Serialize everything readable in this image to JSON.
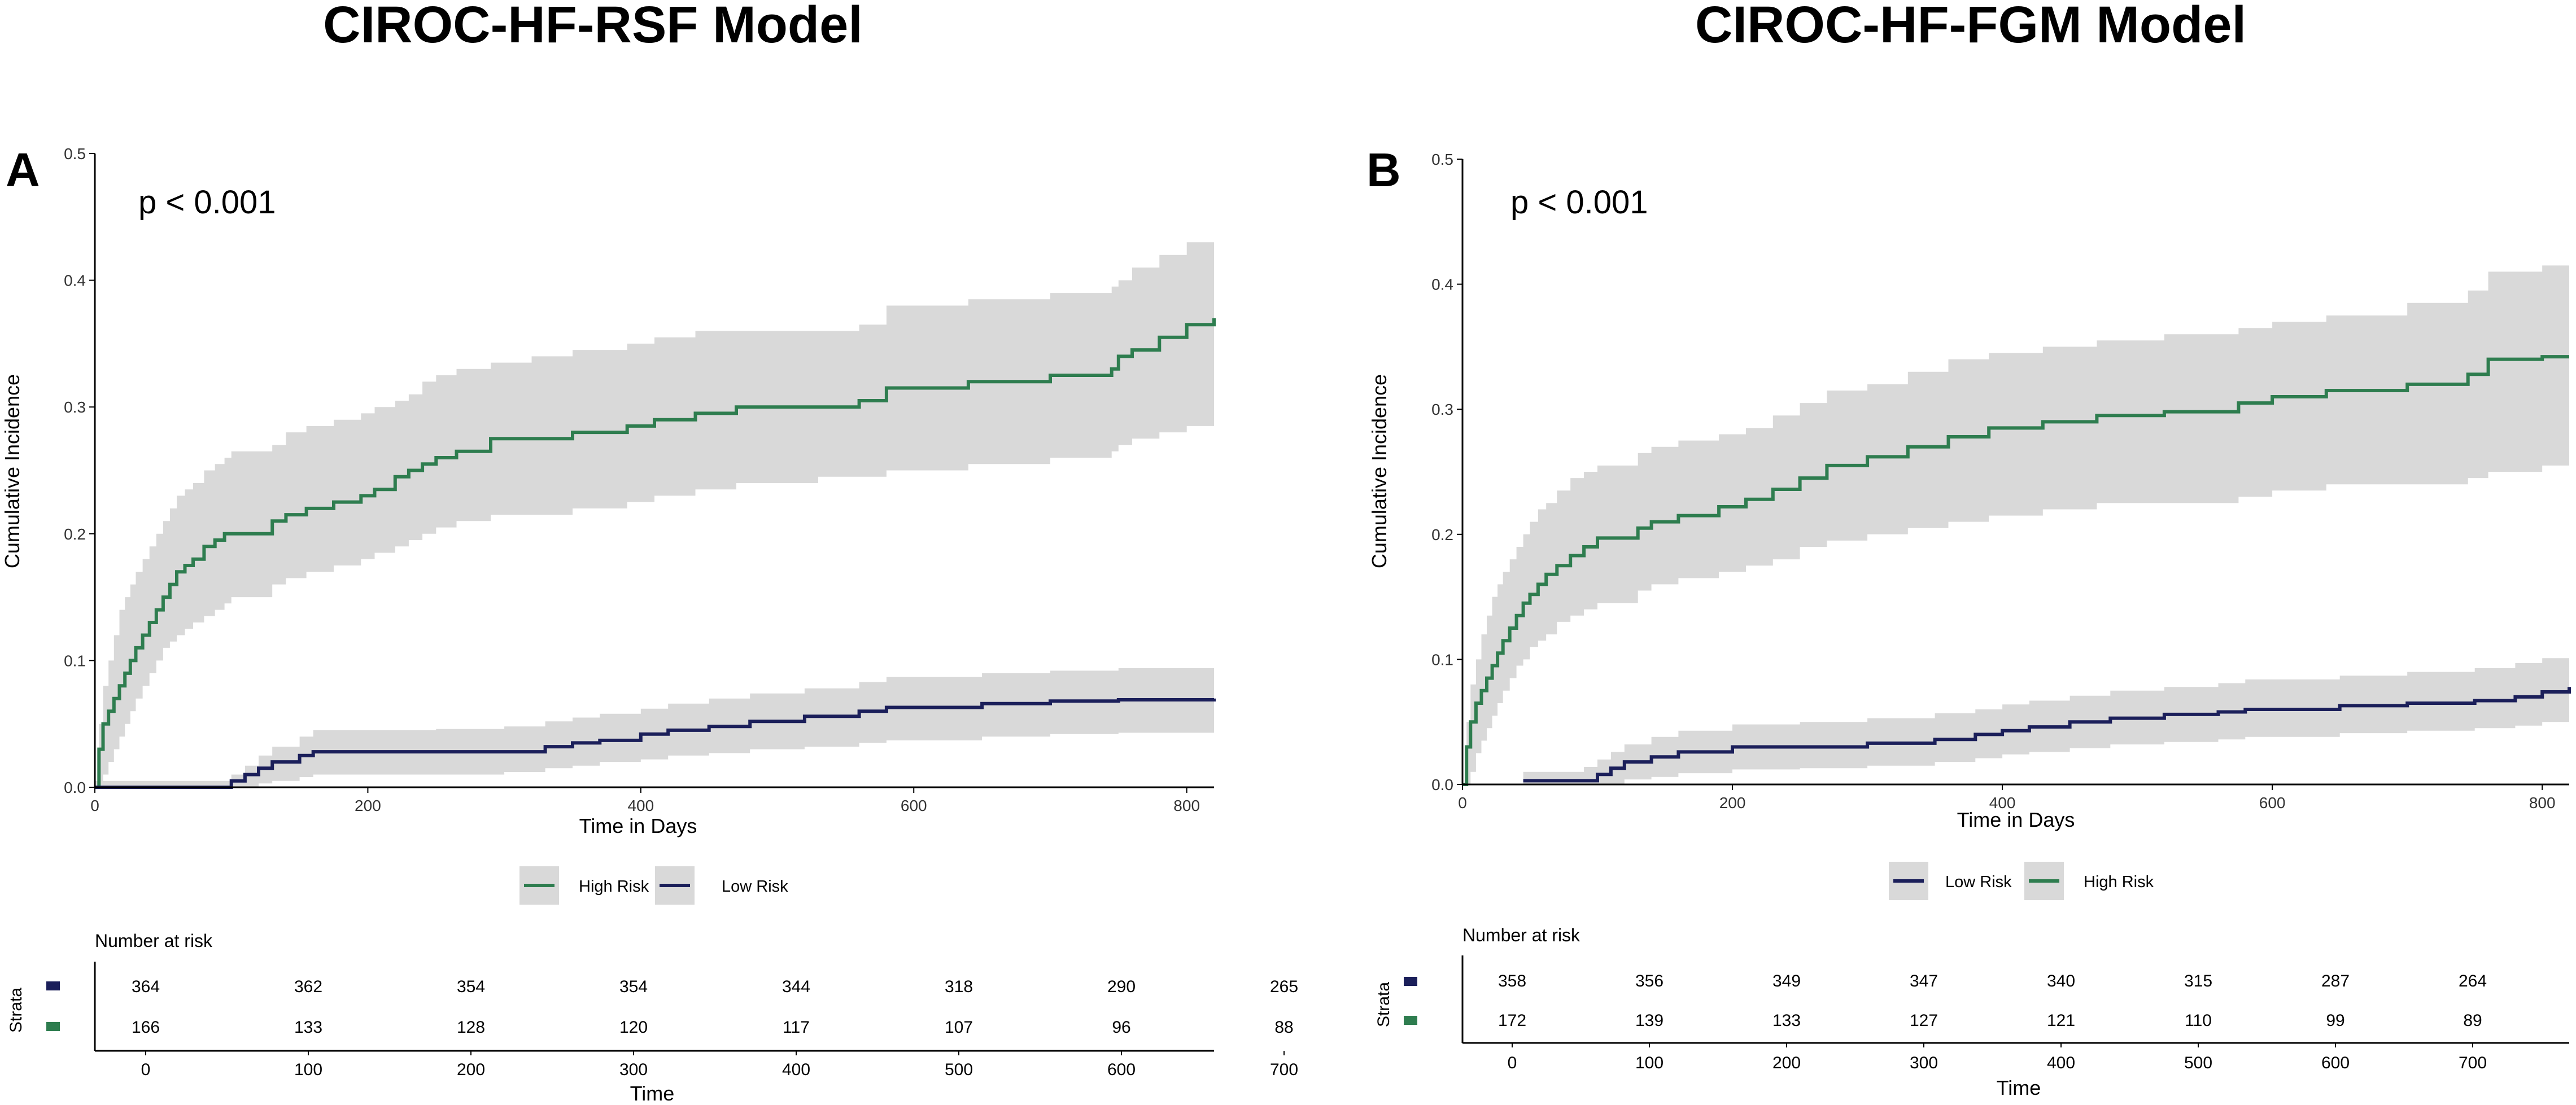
{
  "colors": {
    "high": "#2e7d4f",
    "low": "#1b1f5a",
    "band": "#d9d9d9",
    "axis": "#000000"
  },
  "panels": [
    {
      "title": "CIROC-HF-RSF Model",
      "label": "A",
      "pvalue": "p < 0.001",
      "legend": [
        "High Risk",
        "Low Risk"
      ],
      "risk_table": {
        "title": "Number at risk",
        "strata_label": "Strata",
        "xlabel": "Time",
        "ticks": [
          "0",
          "100",
          "200",
          "300",
          "400",
          "500",
          "600",
          "700"
        ],
        "rows": [
          {
            "series": "Low Risk",
            "values": [
              "364",
              "362",
              "354",
              "354",
              "344",
              "318",
              "290",
              "265"
            ]
          },
          {
            "series": "High Risk",
            "values": [
              "166",
              "133",
              "128",
              "120",
              "117",
              "107",
              "96",
              "88"
            ]
          }
        ]
      }
    },
    {
      "title": "CIROC-HF-FGM Model",
      "label": "B",
      "pvalue": "p < 0.001",
      "legend": [
        "Low Risk",
        "High Risk"
      ],
      "risk_table": {
        "title": "Number at risk",
        "strata_label": "Strata",
        "xlabel": "Time",
        "ticks": [
          "0",
          "100",
          "200",
          "300",
          "400",
          "500",
          "600",
          "700"
        ],
        "rows": [
          {
            "series": "Low Risk",
            "values": [
              "358",
              "356",
              "349",
              "347",
              "340",
              "315",
              "287",
              "264"
            ]
          },
          {
            "series": "High Risk",
            "values": [
              "172",
              "139",
              "133",
              "127",
              "121",
              "110",
              "99",
              "89"
            ]
          }
        ]
      }
    }
  ],
  "chart_data": [
    {
      "type": "line",
      "title": "CIROC-HF-RSF Model",
      "xlabel": "Time in Days",
      "ylabel": "Cumulative Incidence",
      "xlim": [
        0,
        820
      ],
      "ylim": [
        0,
        0.5
      ],
      "xticks": [
        0,
        200,
        400,
        600,
        800
      ],
      "yticks": [
        0.0,
        0.1,
        0.2,
        0.3,
        0.4,
        0.5
      ],
      "grid": false,
      "legend_position": "bottom",
      "series": [
        {
          "name": "High Risk",
          "color": "#2e7d4f",
          "x": [
            0,
            3,
            6,
            10,
            14,
            18,
            22,
            26,
            30,
            35,
            40,
            45,
            50,
            55,
            60,
            66,
            72,
            80,
            88,
            95,
            100,
            130,
            140,
            155,
            175,
            195,
            205,
            220,
            230,
            240,
            250,
            265,
            290,
            320,
            350,
            370,
            390,
            410,
            440,
            470,
            500,
            530,
            560,
            580,
            600,
            640,
            660,
            700,
            745,
            750,
            760,
            780,
            800,
            820
          ],
          "y": [
            0,
            0.03,
            0.05,
            0.06,
            0.07,
            0.08,
            0.09,
            0.1,
            0.11,
            0.12,
            0.13,
            0.14,
            0.15,
            0.16,
            0.17,
            0.175,
            0.18,
            0.19,
            0.195,
            0.2,
            0.2,
            0.21,
            0.215,
            0.22,
            0.225,
            0.23,
            0.235,
            0.245,
            0.25,
            0.255,
            0.26,
            0.265,
            0.275,
            0.275,
            0.28,
            0.28,
            0.285,
            0.29,
            0.295,
            0.3,
            0.3,
            0.3,
            0.305,
            0.315,
            0.315,
            0.32,
            0.32,
            0.325,
            0.33,
            0.34,
            0.345,
            0.355,
            0.365,
            0.37
          ],
          "ci_lower": [
            0,
            0.0,
            0.01,
            0.02,
            0.03,
            0.04,
            0.05,
            0.06,
            0.07,
            0.08,
            0.09,
            0.1,
            0.11,
            0.115,
            0.12,
            0.125,
            0.13,
            0.135,
            0.14,
            0.145,
            0.15,
            0.16,
            0.165,
            0.17,
            0.175,
            0.18,
            0.185,
            0.19,
            0.195,
            0.2,
            0.205,
            0.21,
            0.215,
            0.215,
            0.22,
            0.22,
            0.225,
            0.23,
            0.235,
            0.24,
            0.24,
            0.245,
            0.245,
            0.25,
            0.25,
            0.255,
            0.255,
            0.26,
            0.265,
            0.27,
            0.275,
            0.28,
            0.285,
            0.29
          ],
          "ci_upper": [
            0,
            0.05,
            0.08,
            0.1,
            0.12,
            0.14,
            0.15,
            0.16,
            0.17,
            0.18,
            0.19,
            0.2,
            0.21,
            0.22,
            0.23,
            0.235,
            0.24,
            0.25,
            0.255,
            0.26,
            0.265,
            0.27,
            0.28,
            0.285,
            0.29,
            0.295,
            0.3,
            0.305,
            0.31,
            0.32,
            0.325,
            0.33,
            0.335,
            0.34,
            0.345,
            0.345,
            0.35,
            0.355,
            0.36,
            0.36,
            0.36,
            0.36,
            0.365,
            0.38,
            0.38,
            0.385,
            0.385,
            0.39,
            0.395,
            0.4,
            0.41,
            0.42,
            0.43,
            0.45
          ]
        },
        {
          "name": "Low Risk",
          "color": "#1b1f5a",
          "x": [
            0,
            90,
            100,
            110,
            120,
            130,
            150,
            160,
            200,
            250,
            300,
            330,
            350,
            370,
            400,
            420,
            450,
            480,
            520,
            560,
            580,
            650,
            700,
            750,
            820
          ],
          "y": [
            0,
            0.0,
            0.005,
            0.01,
            0.015,
            0.02,
            0.025,
            0.028,
            0.028,
            0.028,
            0.028,
            0.032,
            0.035,
            0.037,
            0.042,
            0.045,
            0.048,
            0.052,
            0.056,
            0.06,
            0.063,
            0.066,
            0.068,
            0.069,
            0.07
          ],
          "ci_lower": [
            0,
            0.0,
            0.0,
            0.0,
            0.003,
            0.005,
            0.008,
            0.01,
            0.01,
            0.01,
            0.012,
            0.015,
            0.017,
            0.02,
            0.022,
            0.025,
            0.027,
            0.03,
            0.032,
            0.035,
            0.037,
            0.04,
            0.042,
            0.043,
            0.045
          ],
          "ci_upper": [
            0.005,
            0.005,
            0.01,
            0.017,
            0.025,
            0.032,
            0.04,
            0.045,
            0.045,
            0.046,
            0.048,
            0.052,
            0.055,
            0.058,
            0.062,
            0.066,
            0.07,
            0.074,
            0.078,
            0.083,
            0.087,
            0.09,
            0.092,
            0.094,
            0.096
          ]
        }
      ]
    },
    {
      "type": "line",
      "title": "CIROC-HF-FGM Model",
      "xlabel": "Time in Days",
      "ylabel": "Cumulative Incidence",
      "xlim": [
        0,
        820
      ],
      "ylim": [
        0,
        0.5
      ],
      "xticks": [
        0,
        200,
        400,
        600,
        800
      ],
      "yticks": [
        0.0,
        0.1,
        0.2,
        0.3,
        0.4,
        0.5
      ],
      "grid": false,
      "legend_position": "bottom",
      "series": [
        {
          "name": "Low Risk",
          "color": "#1b1f5a",
          "x": [
            45,
            90,
            100,
            110,
            120,
            140,
            160,
            200,
            250,
            300,
            350,
            380,
            400,
            420,
            450,
            480,
            520,
            560,
            580,
            650,
            700,
            750,
            780,
            800,
            820
          ],
          "y": [
            0.003,
            0.003,
            0.008,
            0.013,
            0.018,
            0.022,
            0.026,
            0.03,
            0.03,
            0.033,
            0.036,
            0.04,
            0.043,
            0.046,
            0.05,
            0.053,
            0.056,
            0.058,
            0.06,
            0.063,
            0.065,
            0.067,
            0.07,
            0.074,
            0.078
          ],
          "ci_lower": [
            0,
            0,
            0.0,
            0.0,
            0.004,
            0.006,
            0.009,
            0.012,
            0.013,
            0.015,
            0.018,
            0.021,
            0.024,
            0.026,
            0.029,
            0.032,
            0.034,
            0.036,
            0.038,
            0.041,
            0.043,
            0.045,
            0.047,
            0.05,
            0.053
          ],
          "ci_upper": [
            0.01,
            0.014,
            0.02,
            0.026,
            0.032,
            0.038,
            0.043,
            0.048,
            0.05,
            0.053,
            0.057,
            0.06,
            0.064,
            0.067,
            0.071,
            0.075,
            0.078,
            0.081,
            0.084,
            0.087,
            0.09,
            0.093,
            0.097,
            0.101,
            0.105
          ]
        },
        {
          "name": "High Risk",
          "color": "#2e7d4f",
          "x": [
            0,
            3,
            6,
            10,
            14,
            18,
            22,
            26,
            30,
            35,
            40,
            45,
            50,
            56,
            62,
            70,
            80,
            90,
            100,
            130,
            140,
            160,
            190,
            210,
            230,
            250,
            270,
            300,
            330,
            360,
            390,
            430,
            470,
            520,
            575,
            600,
            640,
            700,
            745,
            760,
            800,
            820
          ],
          "y": [
            0,
            0.03,
            0.05,
            0.065,
            0.075,
            0.085,
            0.095,
            0.105,
            0.115,
            0.125,
            0.135,
            0.145,
            0.152,
            0.16,
            0.168,
            0.175,
            0.183,
            0.19,
            0.197,
            0.205,
            0.21,
            0.215,
            0.222,
            0.228,
            0.236,
            0.245,
            0.255,
            0.262,
            0.27,
            0.278,
            0.285,
            0.29,
            0.295,
            0.298,
            0.305,
            0.31,
            0.315,
            0.32,
            0.328,
            0.34,
            0.342,
            0.342
          ],
          "ci_lower": [
            0,
            0.0,
            0.01,
            0.025,
            0.035,
            0.045,
            0.055,
            0.065,
            0.075,
            0.085,
            0.095,
            0.1,
            0.11,
            0.115,
            0.12,
            0.13,
            0.135,
            0.14,
            0.145,
            0.155,
            0.16,
            0.165,
            0.17,
            0.175,
            0.18,
            0.19,
            0.195,
            0.2,
            0.205,
            0.21,
            0.215,
            0.22,
            0.225,
            0.225,
            0.23,
            0.235,
            0.24,
            0.24,
            0.245,
            0.25,
            0.255,
            0.26
          ],
          "ci_upper": [
            0,
            0.05,
            0.08,
            0.1,
            0.12,
            0.135,
            0.15,
            0.16,
            0.17,
            0.18,
            0.19,
            0.2,
            0.21,
            0.22,
            0.225,
            0.235,
            0.245,
            0.25,
            0.255,
            0.265,
            0.27,
            0.275,
            0.28,
            0.285,
            0.295,
            0.305,
            0.315,
            0.32,
            0.33,
            0.34,
            0.345,
            0.35,
            0.355,
            0.36,
            0.365,
            0.37,
            0.375,
            0.385,
            0.395,
            0.41,
            0.415,
            0.415
          ]
        }
      ]
    }
  ]
}
